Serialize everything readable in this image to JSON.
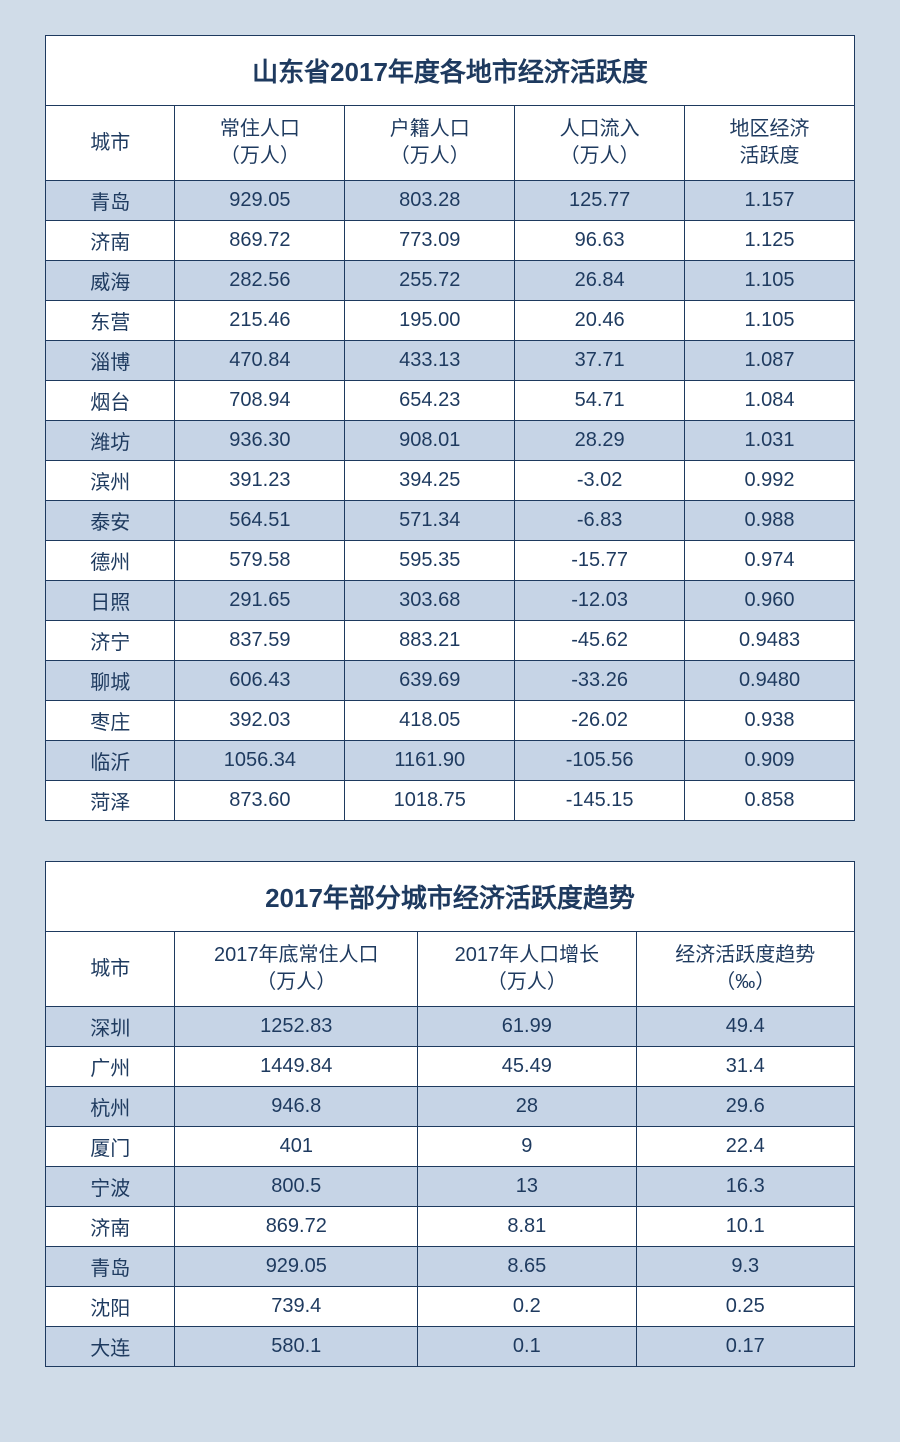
{
  "table1": {
    "title": "山东省2017年度各地市经济活跃度",
    "headers": {
      "city": "城市",
      "col1_l1": "常住人口",
      "col1_l2": "（万人）",
      "col2_l1": "户籍人口",
      "col2_l2": "（万人）",
      "col3_l1": "人口流入",
      "col3_l2": "（万人）",
      "col4_l1": "地区经济",
      "col4_l2": "活跃度"
    },
    "rows": [
      {
        "city": "青岛",
        "c1": "929.05",
        "c2": "803.28",
        "c3": "125.77",
        "c4": "1.157"
      },
      {
        "city": "济南",
        "c1": "869.72",
        "c2": "773.09",
        "c3": "96.63",
        "c4": "1.125"
      },
      {
        "city": "威海",
        "c1": "282.56",
        "c2": "255.72",
        "c3": "26.84",
        "c4": "1.105"
      },
      {
        "city": "东营",
        "c1": "215.46",
        "c2": "195.00",
        "c3": "20.46",
        "c4": "1.105"
      },
      {
        "city": "淄博",
        "c1": "470.84",
        "c2": "433.13",
        "c3": "37.71",
        "c4": "1.087"
      },
      {
        "city": "烟台",
        "c1": "708.94",
        "c2": "654.23",
        "c3": "54.71",
        "c4": "1.084"
      },
      {
        "city": "潍坊",
        "c1": "936.30",
        "c2": "908.01",
        "c3": "28.29",
        "c4": "1.031"
      },
      {
        "city": "滨州",
        "c1": "391.23",
        "c2": "394.25",
        "c3": "-3.02",
        "c4": "0.992"
      },
      {
        "city": "泰安",
        "c1": "564.51",
        "c2": "571.34",
        "c3": "-6.83",
        "c4": "0.988"
      },
      {
        "city": "德州",
        "c1": "579.58",
        "c2": "595.35",
        "c3": "-15.77",
        "c4": "0.974"
      },
      {
        "city": "日照",
        "c1": "291.65",
        "c2": "303.68",
        "c3": "-12.03",
        "c4": "0.960"
      },
      {
        "city": "济宁",
        "c1": "837.59",
        "c2": "883.21",
        "c3": "-45.62",
        "c4": "0.9483"
      },
      {
        "city": "聊城",
        "c1": "606.43",
        "c2": "639.69",
        "c3": "-33.26",
        "c4": "0.9480"
      },
      {
        "city": "枣庄",
        "c1": "392.03",
        "c2": "418.05",
        "c3": "-26.02",
        "c4": "0.938"
      },
      {
        "city": "临沂",
        "c1": "1056.34",
        "c2": "1161.90",
        "c3": "-105.56",
        "c4": "0.909"
      },
      {
        "city": "菏泽",
        "c1": "873.60",
        "c2": "1018.75",
        "c3": "-145.15",
        "c4": "0.858"
      }
    ]
  },
  "table2": {
    "title": "2017年部分城市经济活跃度趋势",
    "headers": {
      "city": "城市",
      "col1_l1": "2017年底常住人口",
      "col1_l2": "（万人）",
      "col2_l1": "2017年人口增长",
      "col2_l2": "（万人）",
      "col3_l1": "经济活跃度趋势",
      "col3_l2": "（‰）"
    },
    "rows": [
      {
        "city": "深圳",
        "c1": "1252.83",
        "c2": "61.99",
        "c3": "49.4"
      },
      {
        "city": "广州",
        "c1": "1449.84",
        "c2": "45.49",
        "c3": "31.4"
      },
      {
        "city": "杭州",
        "c1": "946.8",
        "c2": "28",
        "c3": "29.6"
      },
      {
        "city": "厦门",
        "c1": "401",
        "c2": "9",
        "c3": "22.4"
      },
      {
        "city": "宁波",
        "c1": "800.5",
        "c2": "13",
        "c3": "16.3"
      },
      {
        "city": "济南",
        "c1": "869.72",
        "c2": "8.81",
        "c3": "10.1"
      },
      {
        "city": "青岛",
        "c1": "929.05",
        "c2": "8.65",
        "c3": "9.3"
      },
      {
        "city": "沈阳",
        "c1": "739.4",
        "c2": "0.2",
        "c3": "0.25"
      },
      {
        "city": "大连",
        "c1": "580.1",
        "c2": "0.1",
        "c3": "0.17"
      }
    ]
  },
  "colors": {
    "page_bg": "#d0dce8",
    "border": "#1e3a5f",
    "text": "#1e3a5f",
    "row_alt": "#c6d4e6",
    "row_base": "#ffffff"
  }
}
